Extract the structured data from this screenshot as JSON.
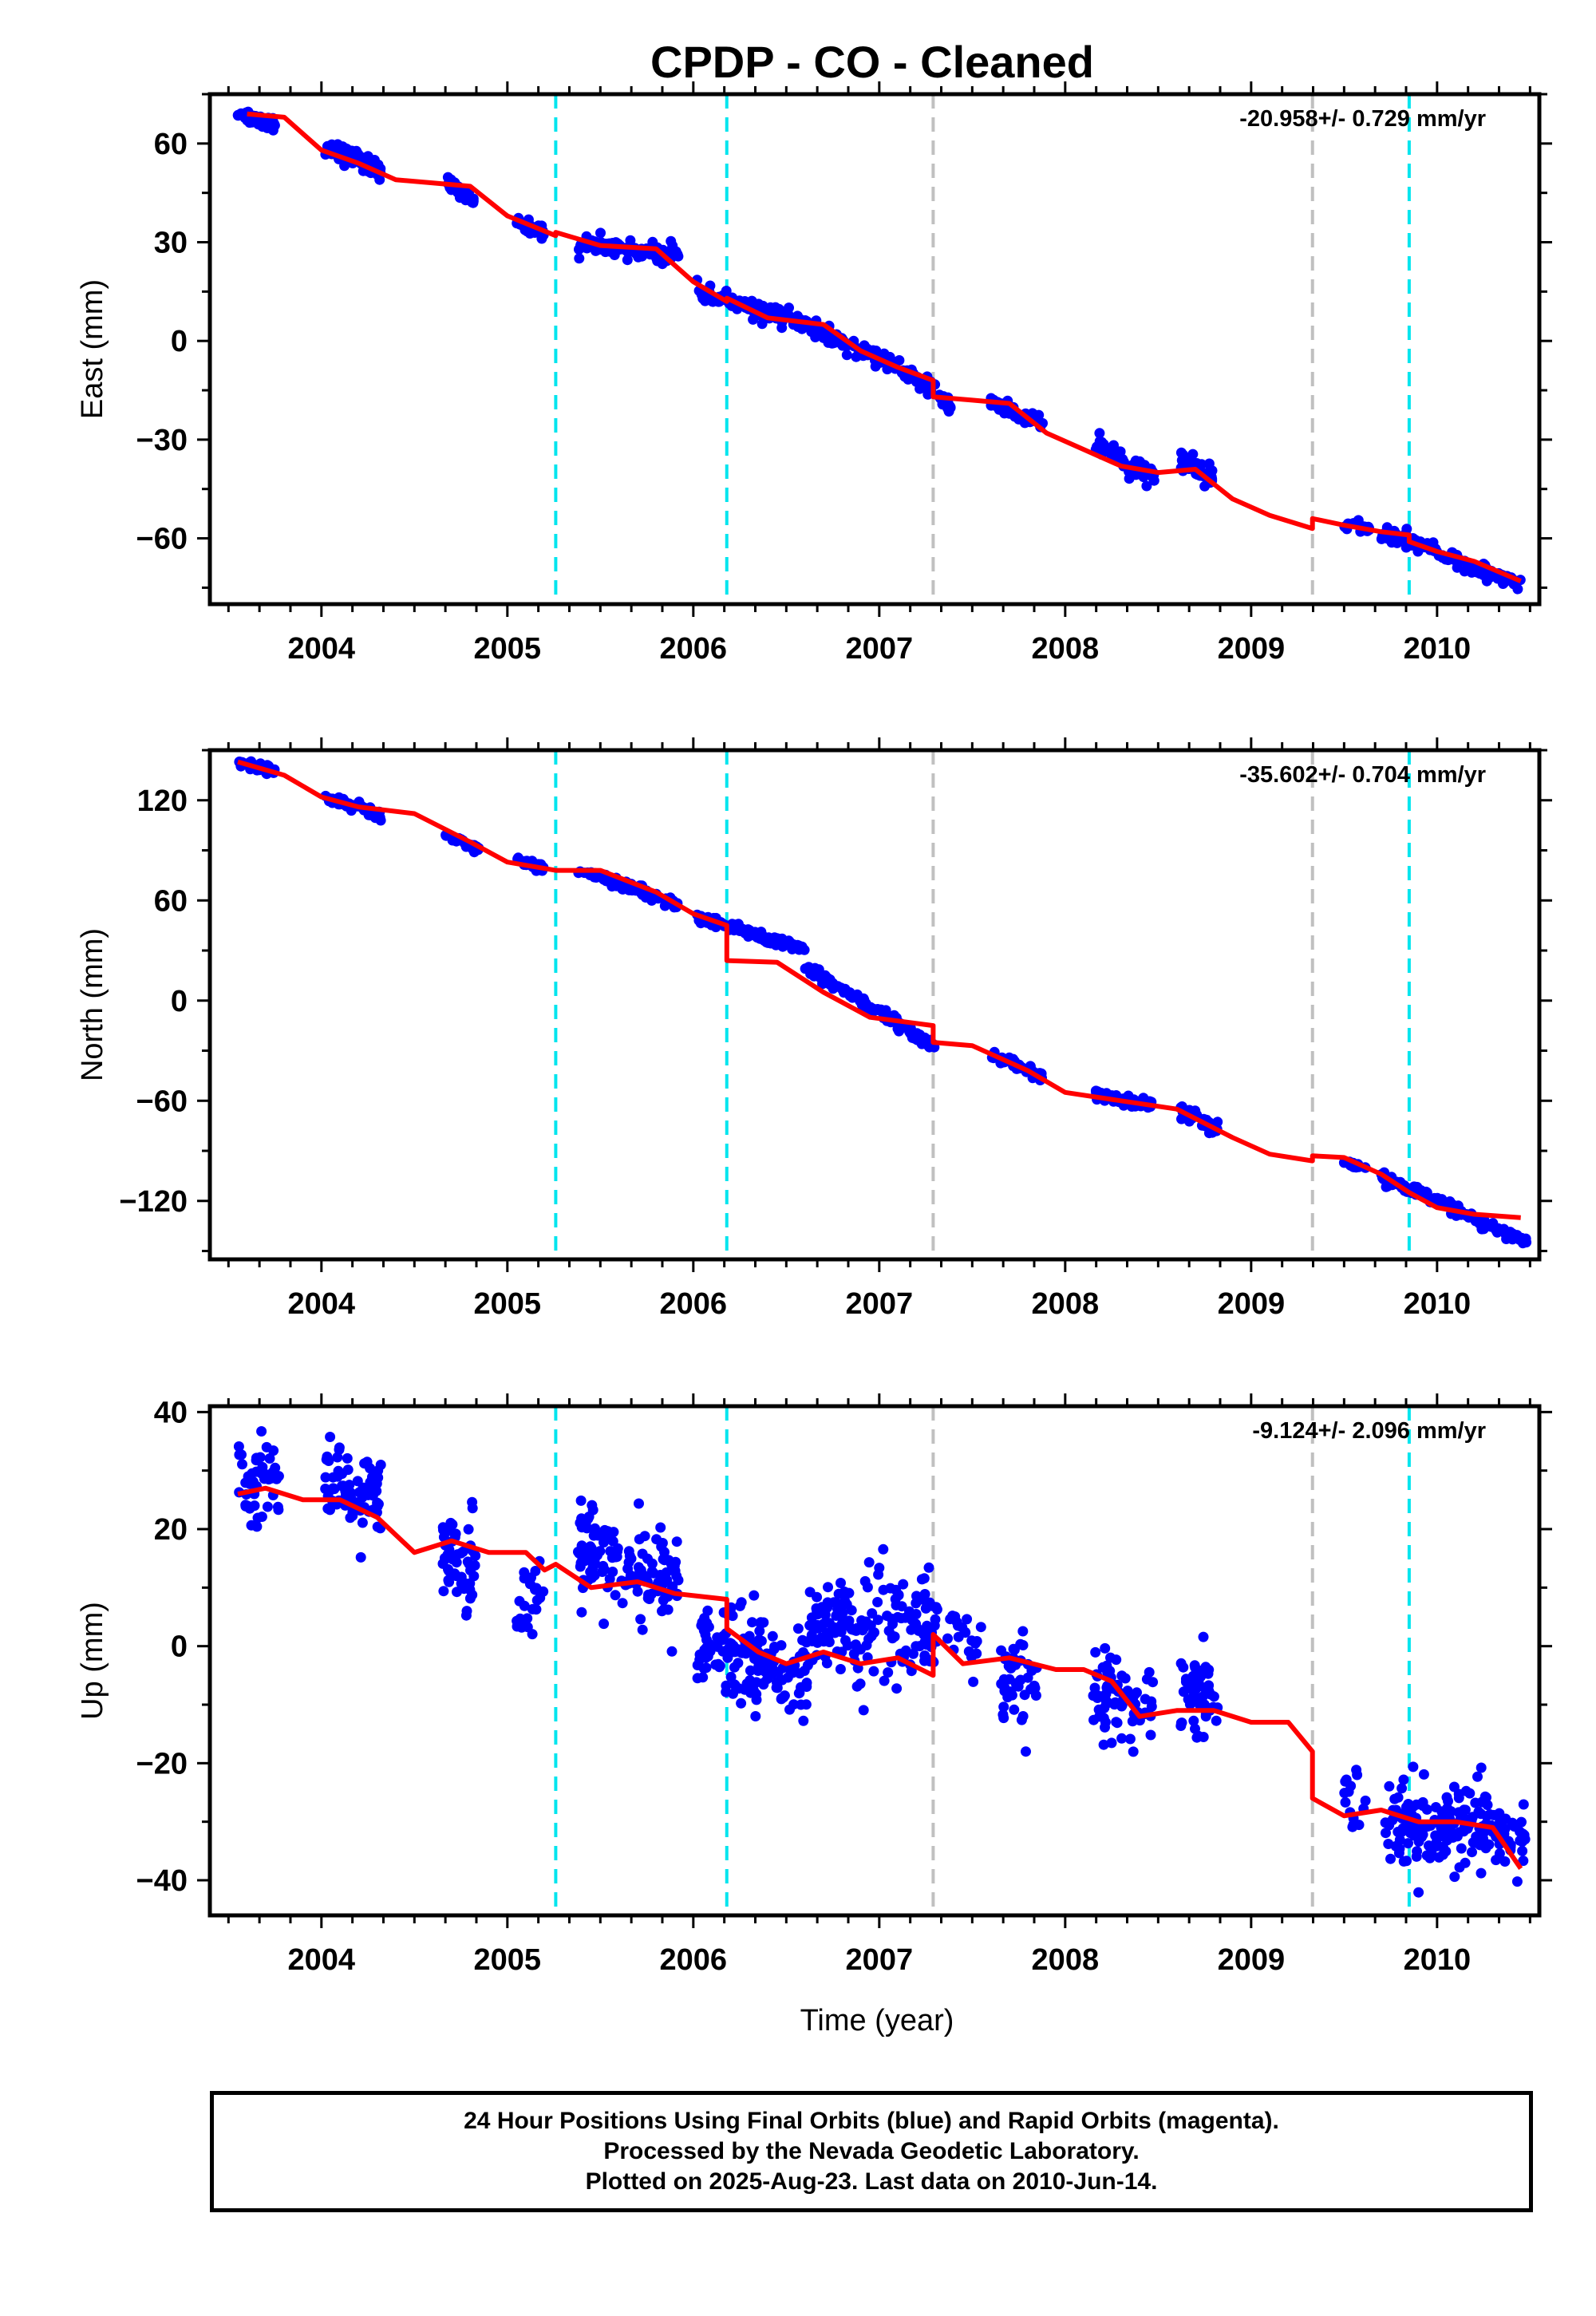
{
  "title": "CPDP  - CO - Cleaned",
  "footer": {
    "line1": "24 Hour Positions Using Final Orbits (blue) and Rapid Orbits (magenta).",
    "line2": "Processed by the Nevada Geodetic Laboratory.",
    "line3": "Plotted on 2025-Aug-23. Last data on 2010-Jun-14."
  },
  "colors": {
    "data_points": "#0000ff",
    "model": "#ff0000",
    "equipment_change": "#00e5ee",
    "earthquake": "#c0c0c0"
  },
  "chart_data": [
    {
      "type": "scatter",
      "name": "east",
      "ylabel": "East (mm)",
      "xlabel": "",
      "rate": "-20.958+/- 0.729 mm/yr",
      "xlim": [
        2003.4,
        2010.55
      ],
      "ylim": [
        -80,
        75
      ],
      "yticks": [
        60,
        30,
        0,
        -30,
        -60
      ],
      "ytick_labels": [
        "60",
        "30",
        "0",
        "−30",
        "−60"
      ],
      "xticks": [
        2004,
        2005,
        2006,
        2007,
        2008,
        2009,
        2010
      ],
      "xtick_labels": [
        "2004",
        "2005",
        "2006",
        "2007",
        "2008",
        "2009",
        "2010"
      ],
      "vlines_cyan": [
        2005.26,
        2006.18,
        2009.85
      ],
      "vlines_gray": [
        2007.29,
        2009.33
      ],
      "model_x": [
        2003.6,
        2003.8,
        2004.0,
        2004.2,
        2004.4,
        2004.6,
        2004.8,
        2005.0,
        2005.26,
        2005.26,
        2005.5,
        2005.8,
        2006.0,
        2006.18,
        2006.18,
        2006.4,
        2006.7,
        2006.9,
        2007.1,
        2007.29,
        2007.29,
        2007.5,
        2007.7,
        2007.9,
        2008.1,
        2008.3,
        2008.5,
        2008.7,
        2008.9,
        2009.1,
        2009.33,
        2009.33,
        2009.5,
        2009.7,
        2009.85,
        2009.85,
        2010.0,
        2010.2,
        2010.45
      ],
      "model_y": [
        69,
        68,
        58,
        54,
        49,
        48,
        47,
        38,
        32,
        33,
        29,
        28,
        18,
        12,
        13,
        7,
        5,
        -3,
        -8,
        -12,
        -17,
        -18,
        -19,
        -28,
        -33,
        -38,
        -40,
        -39,
        -48,
        -53,
        -57,
        -54,
        -56,
        -58,
        -59,
        -61,
        -64,
        -67,
        -73
      ],
      "clusters": [
        {
          "x": [
            2003.55,
            2003.75
          ],
          "y0": 69,
          "y1": 66,
          "n": 40,
          "sd": 1.2
        },
        {
          "x": [
            2004.02,
            2004.32
          ],
          "y0": 59,
          "y1": 52,
          "n": 60,
          "sd": 1.4
        },
        {
          "x": [
            2004.68,
            2004.82
          ],
          "y0": 47,
          "y1": 43,
          "n": 30,
          "sd": 1.3
        },
        {
          "x": [
            2005.05,
            2005.2
          ],
          "y0": 36,
          "y1": 33,
          "n": 25,
          "sd": 1.0
        },
        {
          "x": [
            2005.38,
            2005.92
          ],
          "y0": 30,
          "y1": 26,
          "n": 90,
          "sd": 1.4
        },
        {
          "x": [
            2006.02,
            2006.6
          ],
          "y0": 15,
          "y1": 5,
          "n": 100,
          "sd": 1.3
        },
        {
          "x": [
            2006.6,
            2007.3
          ],
          "y0": 5,
          "y1": -14,
          "n": 110,
          "sd": 1.3
        },
        {
          "x": [
            2007.3,
            2007.4
          ],
          "y0": -16,
          "y1": -21,
          "n": 15,
          "sd": 1.2
        },
        {
          "x": [
            2007.6,
            2007.88
          ],
          "y0": -19,
          "y1": -25,
          "n": 45,
          "sd": 1.3
        },
        {
          "x": [
            2008.15,
            2008.48
          ],
          "y0": -32,
          "y1": -41,
          "n": 55,
          "sd": 1.6
        },
        {
          "x": [
            2008.62,
            2008.8
          ],
          "y0": -36,
          "y1": -42,
          "n": 40,
          "sd": 1.6
        },
        {
          "x": [
            2009.5,
            2009.65
          ],
          "y0": -56,
          "y1": -57,
          "n": 15,
          "sd": 0.8
        },
        {
          "x": [
            2009.7,
            2010.45
          ],
          "y0": -58,
          "y1": -74,
          "n": 120,
          "sd": 1.2
        }
      ]
    },
    {
      "type": "scatter",
      "name": "north",
      "ylabel": "North (mm)",
      "xlabel": "",
      "rate": "-35.602+/- 0.704 mm/yr",
      "xlim": [
        2003.4,
        2010.55
      ],
      "ylim": [
        -155,
        150
      ],
      "yticks": [
        120,
        60,
        0,
        -60,
        -120
      ],
      "ytick_labels": [
        "120",
        "60",
        "0",
        "−60",
        "−120"
      ],
      "xticks": [
        2004,
        2005,
        2006,
        2007,
        2008,
        2009,
        2010
      ],
      "xtick_labels": [
        "2004",
        "2005",
        "2006",
        "2007",
        "2008",
        "2009",
        "2010"
      ],
      "vlines_cyan": [
        2005.26,
        2006.18,
        2009.85
      ],
      "vlines_gray": [
        2007.29,
        2009.33
      ],
      "model_x": [
        2003.55,
        2003.8,
        2004.0,
        2004.2,
        2004.5,
        2004.8,
        2005.0,
        2005.26,
        2005.5,
        2005.8,
        2006.0,
        2006.18,
        2006.18,
        2006.45,
        2006.7,
        2006.95,
        2007.29,
        2007.29,
        2007.5,
        2007.8,
        2008.0,
        2008.3,
        2008.6,
        2008.9,
        2009.1,
        2009.33,
        2009.33,
        2009.5,
        2009.7,
        2009.85,
        2010.0,
        2010.2,
        2010.45
      ],
      "model_y": [
        143,
        135,
        122,
        116,
        112,
        95,
        83,
        78,
        78,
        65,
        52,
        45,
        24,
        23,
        5,
        -10,
        -15,
        -25,
        -27,
        -42,
        -55,
        -60,
        -65,
        -82,
        -92,
        -96,
        -93,
        -94,
        -104,
        -115,
        -124,
        -128,
        -130
      ],
      "clusters": [
        {
          "x": [
            2003.55,
            2003.75
          ],
          "y0": 143,
          "y1": 137,
          "n": 35,
          "sd": 1.2
        },
        {
          "x": [
            2004.02,
            2004.32
          ],
          "y0": 122,
          "y1": 111,
          "n": 55,
          "sd": 1.5
        },
        {
          "x": [
            2004.65,
            2004.85
          ],
          "y0": 101,
          "y1": 90,
          "n": 30,
          "sd": 1.5
        },
        {
          "x": [
            2005.05,
            2005.2
          ],
          "y0": 84,
          "y1": 80,
          "n": 25,
          "sd": 1.2
        },
        {
          "x": [
            2005.38,
            2005.92
          ],
          "y0": 78,
          "y1": 58,
          "n": 90,
          "sd": 1.5
        },
        {
          "x": [
            2006.02,
            2006.6
          ],
          "y0": 50,
          "y1": 30,
          "n": 100,
          "sd": 1.6
        },
        {
          "x": [
            2006.6,
            2007.3
          ],
          "y0": 20,
          "y1": -28,
          "n": 110,
          "sd": 1.8
        },
        {
          "x": [
            2007.6,
            2007.88
          ],
          "y0": -32,
          "y1": -45,
          "n": 45,
          "sd": 1.5
        },
        {
          "x": [
            2008.15,
            2008.48
          ],
          "y0": -56,
          "y1": -63,
          "n": 55,
          "sd": 1.6
        },
        {
          "x": [
            2008.62,
            2008.82
          ],
          "y0": -66,
          "y1": -77,
          "n": 40,
          "sd": 2.0
        },
        {
          "x": [
            2009.5,
            2009.62
          ],
          "y0": -97,
          "y1": -101,
          "n": 12,
          "sd": 1.0
        },
        {
          "x": [
            2009.7,
            2010.48
          ],
          "y0": -105,
          "y1": -145,
          "n": 120,
          "sd": 1.6
        }
      ]
    },
    {
      "type": "scatter",
      "name": "up",
      "ylabel": "Up (mm)",
      "xlabel": "Time (year)",
      "rate": "-9.124+/- 2.096 mm/yr",
      "xlim": [
        2003.4,
        2010.55
      ],
      "ylim": [
        -46,
        41
      ],
      "yticks": [
        40,
        20,
        0,
        -20,
        -40
      ],
      "ytick_labels": [
        "40",
        "20",
        "0",
        "−20",
        "−40"
      ],
      "xticks": [
        2004,
        2005,
        2006,
        2007,
        2008,
        2009,
        2010
      ],
      "xtick_labels": [
        "2004",
        "2005",
        "2006",
        "2007",
        "2008",
        "2009",
        "2010"
      ],
      "vlines_cyan": [
        2005.26,
        2006.18,
        2009.85
      ],
      "vlines_gray": [
        2007.29,
        2009.33
      ],
      "model_x": [
        2003.55,
        2003.7,
        2003.9,
        2004.1,
        2004.3,
        2004.5,
        2004.7,
        2004.9,
        2005.1,
        2005.2,
        2005.26,
        2005.45,
        2005.7,
        2005.9,
        2006.18,
        2006.18,
        2006.35,
        2006.5,
        2006.7,
        2006.9,
        2007.1,
        2007.29,
        2007.29,
        2007.45,
        2007.7,
        2007.95,
        2008.1,
        2008.25,
        2008.4,
        2008.6,
        2008.8,
        2009.0,
        2009.2,
        2009.33,
        2009.33,
        2009.5,
        2009.7,
        2009.9,
        2010.1,
        2010.3,
        2010.45
      ],
      "model_y": [
        26,
        27,
        25,
        25,
        22,
        16,
        18,
        16,
        16,
        13,
        14,
        10,
        11,
        9,
        8,
        3,
        -1,
        -3,
        -1,
        -3,
        -2,
        -5,
        2,
        -3,
        -2,
        -4,
        -4,
        -6,
        -12,
        -11,
        -11,
        -13,
        -13,
        -18,
        -26,
        -29,
        -28,
        -30,
        -30,
        -31,
        -38
      ],
      "clusters": [
        {
          "x": [
            2003.55,
            2003.78
          ],
          "y0": 28,
          "y1": 30,
          "n": 45,
          "sd": 4.0
        },
        {
          "x": [
            2004.02,
            2004.32
          ],
          "y0": 28,
          "y1": 24,
          "n": 80,
          "sd": 3.5
        },
        {
          "x": [
            2004.65,
            2004.83
          ],
          "y0": 16,
          "y1": 14,
          "n": 50,
          "sd": 4.0
        },
        {
          "x": [
            2005.05,
            2005.2
          ],
          "y0": 8,
          "y1": 10,
          "n": 25,
          "sd": 3.0
        },
        {
          "x": [
            2005.38,
            2005.92
          ],
          "y0": 17,
          "y1": 9,
          "n": 140,
          "sd": 4.5
        },
        {
          "x": [
            2006.02,
            2006.62
          ],
          "y0": 0,
          "y1": -5,
          "n": 160,
          "sd": 4.5
        },
        {
          "x": [
            2006.62,
            2007.32
          ],
          "y0": 3,
          "y1": 2,
          "n": 170,
          "sd": 4.5
        },
        {
          "x": [
            2007.35,
            2007.55
          ],
          "y0": 3,
          "y1": 0,
          "n": 20,
          "sd": 4.0
        },
        {
          "x": [
            2007.65,
            2007.85
          ],
          "y0": -5,
          "y1": -7,
          "n": 45,
          "sd": 3.5
        },
        {
          "x": [
            2008.15,
            2008.48
          ],
          "y0": -7,
          "y1": -11,
          "n": 70,
          "sd": 3.5
        },
        {
          "x": [
            2008.62,
            2008.82
          ],
          "y0": -6,
          "y1": -10,
          "n": 55,
          "sd": 4.0
        },
        {
          "x": [
            2009.5,
            2009.62
          ],
          "y0": -24,
          "y1": -28,
          "n": 15,
          "sd": 3.0
        },
        {
          "x": [
            2009.72,
            2010.48
          ],
          "y0": -30,
          "y1": -31,
          "n": 200,
          "sd": 3.5
        }
      ]
    }
  ]
}
